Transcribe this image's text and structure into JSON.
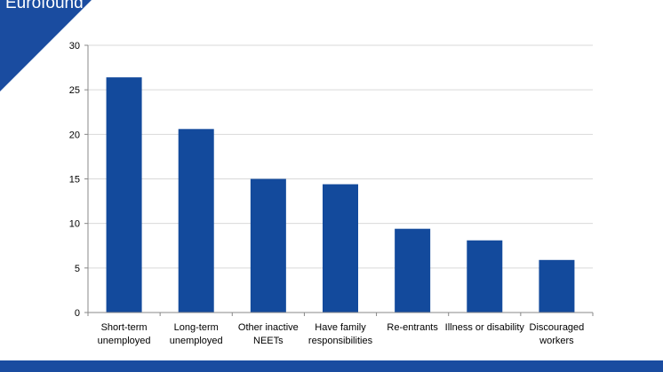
{
  "brand": {
    "label": "Eurofound",
    "color": "#1a4ca0"
  },
  "theme": {
    "bar_color": "#134a9c",
    "grid_color": "#d9d9d9",
    "axis_color": "#888888",
    "text_color": "#000000"
  },
  "chart_data": {
    "type": "bar",
    "categories": [
      [
        "Short-term",
        "unemployed"
      ],
      [
        "Long-term",
        "unemployed"
      ],
      [
        "Other inactive",
        "NEETs"
      ],
      [
        "Have family",
        "responsibilities"
      ],
      [
        "Re-entrants"
      ],
      [
        "Illness or disability"
      ],
      [
        "Discouraged",
        "workers"
      ]
    ],
    "values": [
      26.4,
      20.6,
      15.0,
      14.4,
      9.4,
      8.1,
      5.9
    ],
    "title": "",
    "xlabel": "",
    "ylabel": "",
    "ylim": [
      0,
      30
    ],
    "yticks": [
      0,
      5,
      10,
      15,
      20,
      25,
      30
    ],
    "grid": true,
    "legend": "none"
  }
}
